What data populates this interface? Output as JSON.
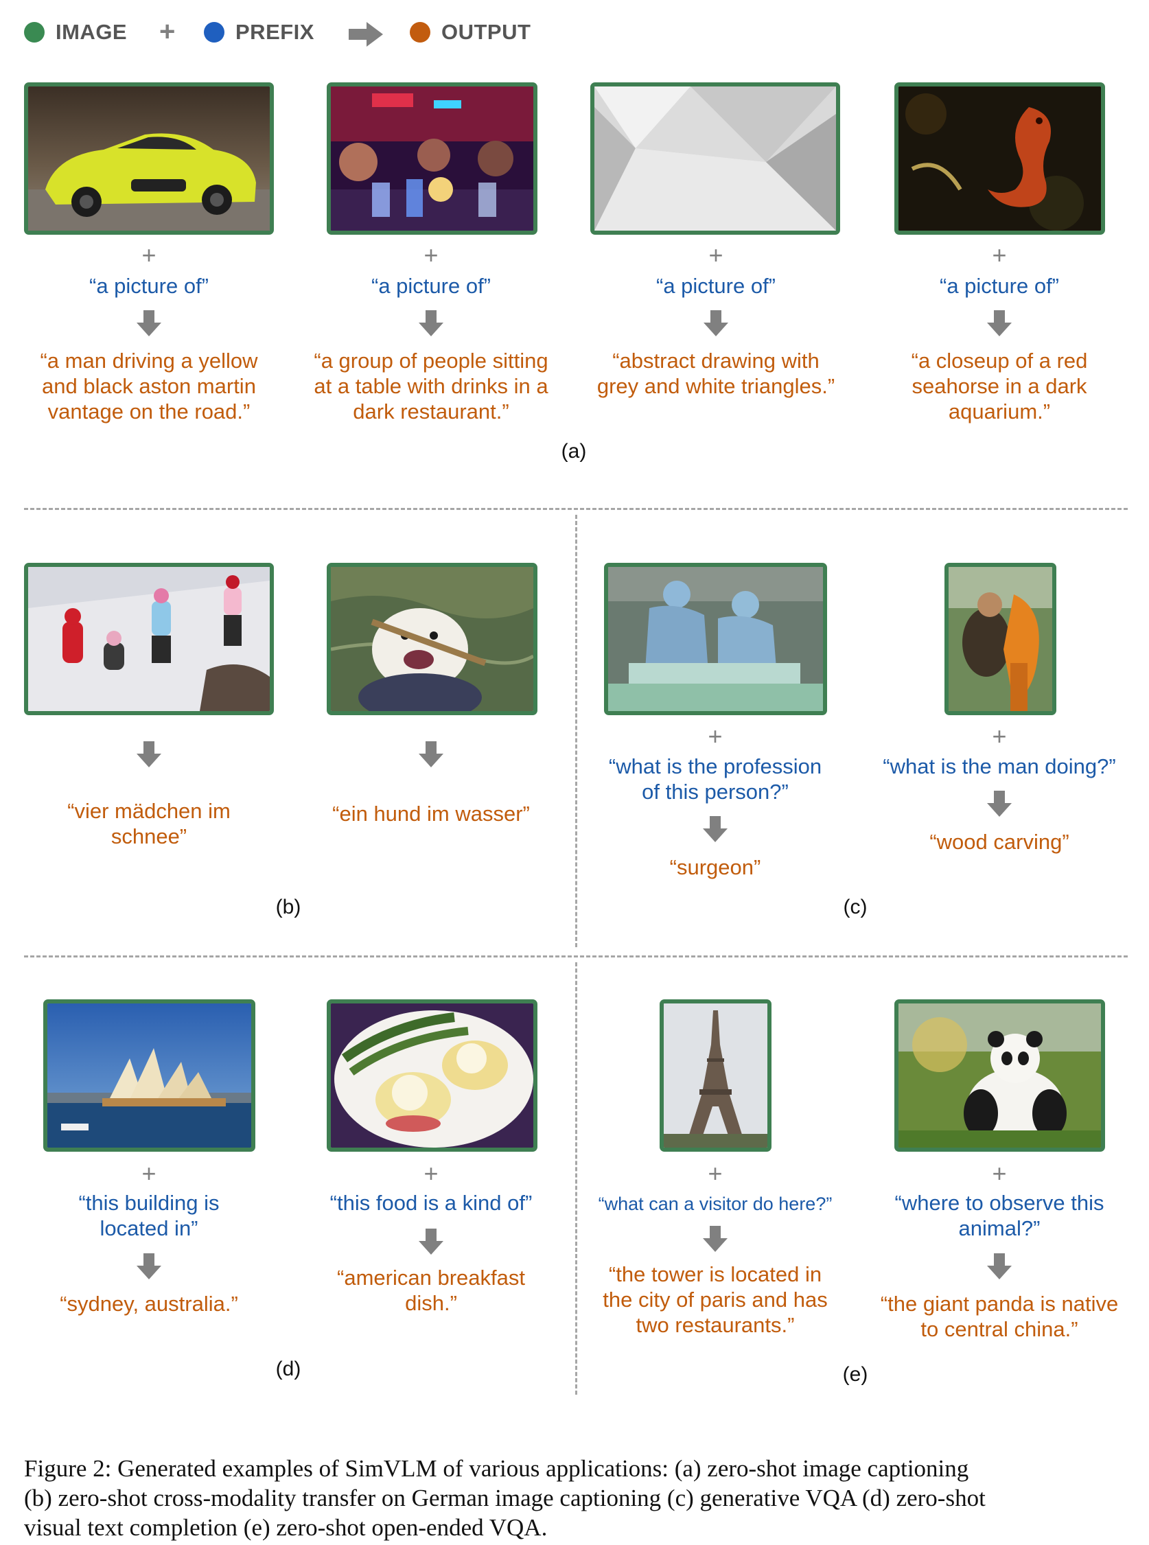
{
  "legend": {
    "image_label": "IMAGE",
    "prefix_label": "PREFIX",
    "output_label": "OUTPUT",
    "plus": "+",
    "colors": {
      "image": "#3a8a52",
      "prefix": "#1f5fbf",
      "output": "#c25c0f",
      "arrow": "#808080"
    }
  },
  "panels": {
    "a": {
      "label": "(a)",
      "items": [
        {
          "image": "yellow-sports-car-photo",
          "plus": "+",
          "prefix": "“a picture of”",
          "output": [
            "“a man driving a yellow",
            "and black aston martin",
            "vantage on the road.”"
          ]
        },
        {
          "image": "restaurant-drinks-photo",
          "plus": "+",
          "prefix": "“a picture of”",
          "output": [
            "“a group of people sitting",
            "at a table with drinks in a",
            "dark restaurant.”"
          ]
        },
        {
          "image": "grey-triangles-photo",
          "plus": "+",
          "prefix": "“a picture of”",
          "output": [
            "“abstract drawing with",
            "grey and white triangles.”"
          ]
        },
        {
          "image": "red-seahorse-photo",
          "plus": "+",
          "prefix": "“a picture of”",
          "output": [
            "“a closeup of a red",
            "seahorse in a dark",
            "aquarium.”"
          ]
        }
      ]
    },
    "b": {
      "label": "(b)",
      "items": [
        {
          "image": "girls-in-snow-photo",
          "output": [
            "“vier mädchen im",
            "schnee”"
          ]
        },
        {
          "image": "dog-in-water-photo",
          "output": [
            "“ein hund im wasser”"
          ]
        }
      ]
    },
    "c": {
      "label": "(c)",
      "items": [
        {
          "image": "surgeons-photo",
          "plus": "+",
          "prefix": [
            "“what is the profession",
            "of this person?”"
          ],
          "output": [
            "“surgeon”"
          ]
        },
        {
          "image": "wood-carver-photo",
          "plus": "+",
          "prefix": [
            "“what is the man doing?”"
          ],
          "output": [
            "“wood carving”"
          ]
        }
      ]
    },
    "d": {
      "label": "(d)",
      "items": [
        {
          "image": "sydney-opera-house-photo",
          "plus": "+",
          "prefix": [
            "“this building is",
            "located in”"
          ],
          "output": [
            "“sydney, australia.”"
          ]
        },
        {
          "image": "eggs-benedict-photo",
          "plus": "+",
          "prefix": [
            "“this food is a kind of”"
          ],
          "output": [
            "“american breakfast",
            "dish.”"
          ]
        }
      ]
    },
    "e": {
      "label": "(e)",
      "items": [
        {
          "image": "eiffel-tower-photo",
          "plus": "+",
          "prefix": [
            "“what can a visitor do here?”"
          ],
          "output": [
            "“the tower is located in",
            "the city of paris and has",
            "two restaurants.”"
          ]
        },
        {
          "image": "giant-panda-photo",
          "plus": "+",
          "prefix": [
            "“where to observe this",
            "animal?”"
          ],
          "output": [
            "“the giant panda is native",
            "to central china.”"
          ]
        }
      ]
    }
  },
  "caption": {
    "line1": "Figure 2: Generated examples of SimVLM of various applications: (a) zero-shot image captioning",
    "line2": "(b) zero-shot cross-modality transfer on German image captioning (c) generative VQA (d) zero-shot",
    "line3": "visual text completion (e) zero-shot open-ended VQA."
  }
}
